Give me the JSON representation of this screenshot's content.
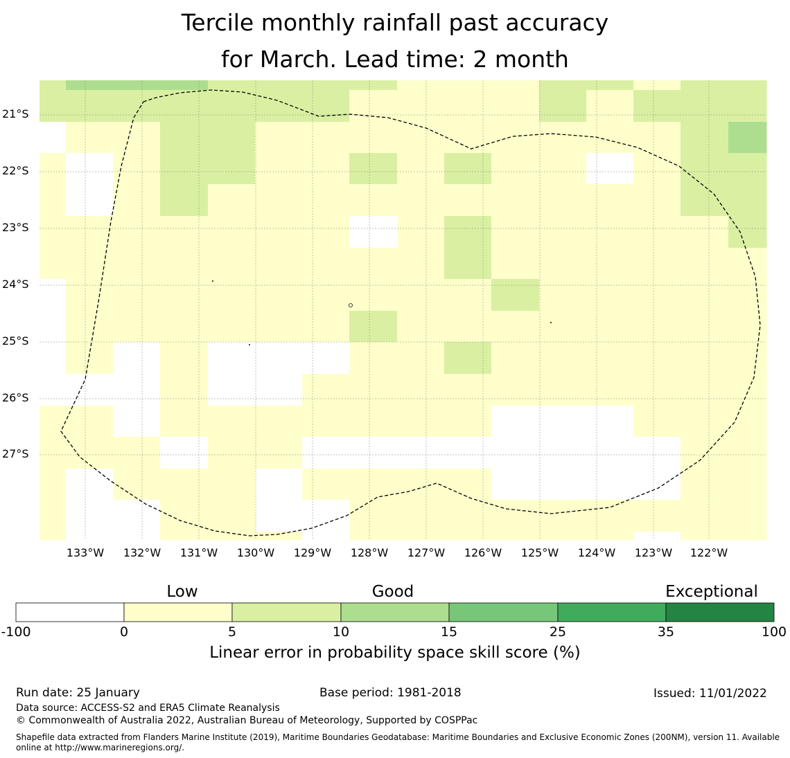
{
  "title": {
    "line1": "Tercile monthly rainfall past accuracy",
    "line2": "for March. Lead time: 2 month"
  },
  "map": {
    "lon_labels": [
      "133°W",
      "132°W",
      "131°W",
      "130°W",
      "129°W",
      "128°W",
      "127°W",
      "126°W",
      "125°W",
      "124°W",
      "123°W",
      "122°W"
    ],
    "lat_labels": [
      "21°S",
      "22°S",
      "23°S",
      "24°S",
      "25°S",
      "26°S",
      "27°S"
    ],
    "colors": {
      "white": "#ffffff",
      "low": "#ffffcc",
      "good": "#d9f0a3",
      "better": "#addd8e",
      "boundary": "#000000",
      "grid": "#808080"
    }
  },
  "colorbar": {
    "categories": [
      "Low",
      "Good",
      "Exceptional"
    ],
    "ticks": [
      "-100",
      "0",
      "5",
      "10",
      "15",
      "25",
      "35",
      "100"
    ],
    "colors": [
      "#ffffff",
      "#ffffcc",
      "#d9f0a3",
      "#addd8e",
      "#78c679",
      "#41ab5d",
      "#238443"
    ],
    "label": "Linear error in probability space skill score (%)"
  },
  "footer": {
    "run_date": "Run date: 25 January",
    "base_period": "Base period: 1981-2018",
    "issued": "Issued: 11/01/2022",
    "data_source": "Data source: ACCESS-S2 and ERA5 Climate Reanalysis",
    "copyright": "© Commonwealth of Australia 2022, Australian Bureau of Meteorology, Supported by COSPPac",
    "shapefile": "Shapefile data extracted from Flanders Marine Institute (2019), Maritime Boundaries Geodatabase: Maritime Boundaries and Exclusive Economic Zones (200NM), version 11. Available online at http://www.marineregions.org/."
  }
}
